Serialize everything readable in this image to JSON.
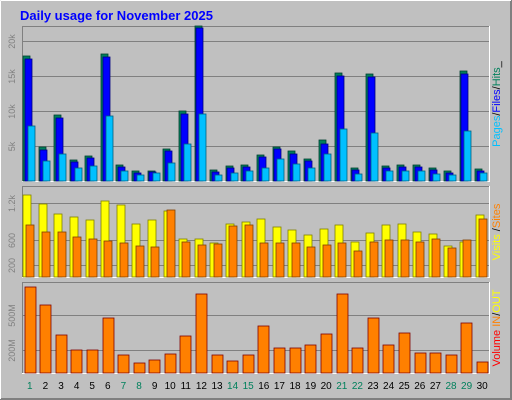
{
  "title": "Daily usage for November 2025",
  "colors": {
    "background": "#c0c0c0",
    "title": "#0000ff",
    "hits": "#00805c",
    "files": "#0000ff",
    "pages": "#00c0ff",
    "visits": "#ffff00",
    "sites": "#ff8000",
    "kb_in": "#ff8000",
    "kb_out": "#ffff00",
    "volume": "#ff0000",
    "weekend_day": "#00805c",
    "weekday": "#000000"
  },
  "chart_data": [
    {
      "type": "bar",
      "panel": "top",
      "side_label_parts": [
        "Pages",
        "/",
        "Files",
        "/",
        "Hits",
        "_"
      ],
      "side_label_colors": [
        "#00c0ff",
        "#000000",
        "#0000ff",
        "#000000",
        "#00805c",
        "#000000"
      ],
      "y_ticks": [
        {
          "value": 5000,
          "label": "5k"
        },
        {
          "value": 10000,
          "label": "10k"
        },
        {
          "value": 15000,
          "label": "15k"
        },
        {
          "value": 20000,
          "label": "20k"
        }
      ],
      "ylim": [
        0,
        22000
      ],
      "series": [
        {
          "name": "Hits",
          "values": [
            17800,
            4800,
            9400,
            3000,
            3600,
            18100,
            2300,
            1500,
            1500,
            4600,
            10000,
            22200,
            1600,
            2200,
            2300,
            3700,
            4900,
            4300,
            3100,
            5900,
            15400,
            1900,
            15300,
            2200,
            2300,
            2300,
            1900,
            1500,
            15700,
            1700
          ]
        },
        {
          "name": "Files",
          "values": [
            17400,
            4400,
            9000,
            2700,
            3300,
            17700,
            2000,
            1200,
            1300,
            4300,
            9600,
            21800,
            1300,
            1900,
            2000,
            3400,
            4600,
            3900,
            2800,
            5300,
            15000,
            1600,
            14900,
            1900,
            2000,
            2000,
            1600,
            1200,
            15300,
            1400
          ]
        },
        {
          "name": "Pages",
          "values": [
            7900,
            2900,
            3900,
            1800,
            2200,
            9300,
            1500,
            900,
            1100,
            2600,
            5300,
            9600,
            900,
            1100,
            1400,
            1800,
            3200,
            2400,
            1800,
            3800,
            7400,
            1000,
            6900,
            1500,
            1400,
            1500,
            1000,
            900,
            7200,
            1100
          ]
        }
      ]
    },
    {
      "type": "bar",
      "panel": "middle",
      "side_label_parts": [
        "Visits",
        " /",
        "Sites"
      ],
      "side_label_colors": [
        "#ffff00",
        "#000000",
        "#ff8000"
      ],
      "y_ticks": [
        {
          "value": 200,
          "label": "200"
        },
        {
          "value": 600,
          "label": "600"
        },
        {
          "value": 1200,
          "label": "1.2k"
        }
      ],
      "ylim": [
        0,
        1450
      ],
      "series": [
        {
          "name": "Visits",
          "values": [
            1320,
            1180,
            1020,
            960,
            920,
            1230,
            1160,
            860,
            920,
            1060,
            620,
            620,
            540,
            860,
            880,
            930,
            800,
            750,
            680,
            780,
            830,
            560,
            710,
            840,
            860,
            720,
            690,
            500,
            560,
            1000
          ]
        },
        {
          "name": "Sites",
          "values": [
            840,
            720,
            720,
            640,
            610,
            580,
            540,
            500,
            490,
            1080,
            560,
            510,
            530,
            820,
            830,
            540,
            550,
            540,
            490,
            510,
            550,
            420,
            560,
            600,
            600,
            560,
            620,
            470,
            600,
            940
          ]
        }
      ]
    },
    {
      "type": "bar",
      "panel": "bottom",
      "side_label_parts": [
        "Volume",
        " ",
        "IN",
        "/",
        "OUT"
      ],
      "side_label_colors": [
        "#ff0000",
        "#000000",
        "#ff8000",
        "#000000",
        "#ffff00"
      ],
      "y_ticks": [
        {
          "value": 200,
          "label": "200M"
        },
        {
          "value": 500,
          "label": "500M"
        }
      ],
      "ylim": [
        0,
        770
      ],
      "series": [
        {
          "name": "Volume",
          "values": [
            735,
            580,
            325,
            200,
            200,
            470,
            150,
            85,
            110,
            160,
            320,
            675,
            150,
            105,
            150,
            400,
            210,
            210,
            240,
            335,
            675,
            210,
            470,
            240,
            340,
            175,
            170,
            155,
            430,
            95
          ]
        }
      ]
    }
  ],
  "x_labels": {
    "days": [
      "1",
      "2",
      "3",
      "4",
      "5",
      "6",
      "7",
      "8",
      "9",
      "10",
      "11",
      "12",
      "13",
      "14",
      "15",
      "16",
      "17",
      "18",
      "19",
      "20",
      "21",
      "22",
      "23",
      "24",
      "25",
      "26",
      "27",
      "28",
      "29",
      "30"
    ],
    "weekend_days": [
      1,
      7,
      8,
      14,
      15,
      21,
      22,
      28,
      29
    ]
  }
}
